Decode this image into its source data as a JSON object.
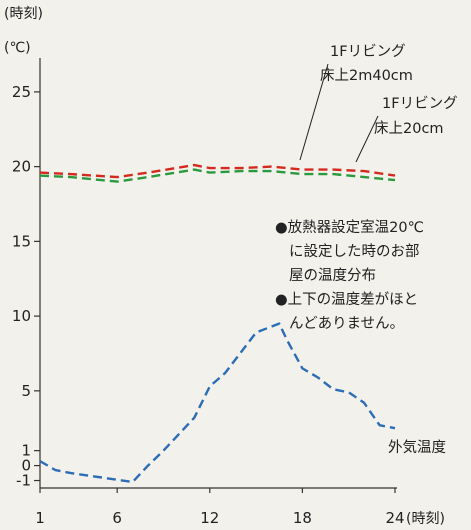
{
  "chart_data": {
    "type": "line",
    "title": "",
    "x_unit_top": "(時刻)",
    "x_unit_bottom": "(時刻)",
    "y_unit": "(℃)",
    "xlim": [
      1,
      24
    ],
    "ylim": [
      -1.5,
      27
    ],
    "grid": false,
    "x_ticks": [
      {
        "value": 1,
        "label": "1"
      },
      {
        "value": 6,
        "label": "6"
      },
      {
        "value": 12,
        "label": "12"
      },
      {
        "value": 18,
        "label": "18"
      },
      {
        "value": 24,
        "label": "24"
      }
    ],
    "y_ticks": [
      {
        "value": 25,
        "label": "25"
      },
      {
        "value": 20,
        "label": "20"
      },
      {
        "value": 15,
        "label": "15"
      },
      {
        "value": 10,
        "label": "10"
      },
      {
        "value": 5,
        "label": "5"
      },
      {
        "value": 1,
        "label": "1"
      },
      {
        "value": 0,
        "label": "0"
      },
      {
        "value": -1,
        "label": "-1"
      }
    ],
    "series": [
      {
        "name_lines": [
          "1Fリビング",
          "床上2m40cm"
        ],
        "color": "#d42a1e",
        "x": [
          1,
          3,
          6,
          8,
          11,
          12,
          14,
          16,
          18,
          20,
          22,
          24
        ],
        "y": [
          19.6,
          19.5,
          19.3,
          19.6,
          20.1,
          19.9,
          19.9,
          20.0,
          19.8,
          19.8,
          19.7,
          19.4
        ]
      },
      {
        "name_lines": [
          "1Fリビング",
          "床上20cm"
        ],
        "color": "#2a9a3e",
        "x": [
          1,
          3,
          6,
          8,
          11,
          12,
          14,
          16,
          18,
          20,
          22,
          24
        ],
        "y": [
          19.4,
          19.3,
          19.0,
          19.3,
          19.8,
          19.6,
          19.7,
          19.7,
          19.5,
          19.5,
          19.3,
          19.1
        ]
      },
      {
        "name_lines": [
          "外気温度"
        ],
        "color": "#2c6db5",
        "x": [
          1,
          2,
          3,
          5,
          7,
          8,
          9,
          11,
          12,
          13,
          15,
          16.5,
          17,
          18,
          19,
          20,
          21,
          22,
          23,
          24
        ],
        "y": [
          0.3,
          -0.3,
          -0.5,
          -0.8,
          -1.1,
          0.0,
          1.0,
          3.2,
          5.3,
          6.2,
          8.9,
          9.5,
          8.4,
          6.5,
          5.9,
          5.1,
          4.9,
          4.2,
          2.7,
          2.5
        ]
      }
    ],
    "annotations": [
      "●放熱器設定室温20℃",
      "に設定した時のお部",
      "屋の温度分布",
      "●上下の温度差がほと",
      "んどありません。"
    ]
  }
}
